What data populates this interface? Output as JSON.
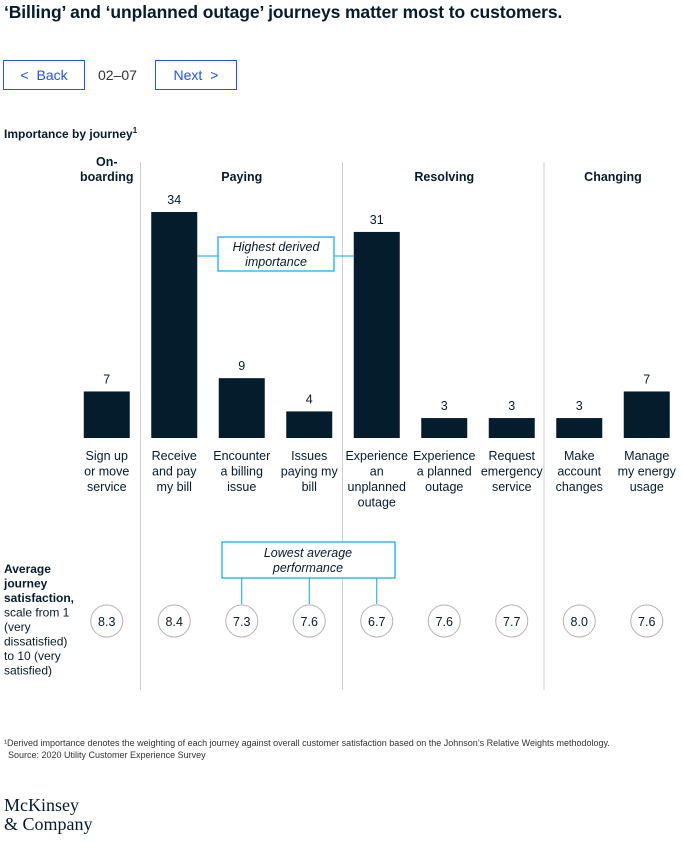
{
  "title": "‘Billing’ and ‘unplanned outage’ journeys matter most to customers.",
  "nav": {
    "back_label": "Back",
    "next_label": "Next",
    "page_indicator": "02–07",
    "back_icon": "chevron-left-icon",
    "next_icon": "chevron-right-icon"
  },
  "chart_data": {
    "type": "bar",
    "title": "Importance by journey",
    "title_footnote_marker": "1",
    "groups": [
      {
        "label": [
          "On-",
          "boarding"
        ],
        "journeys": 1
      },
      {
        "label": [
          "Paying"
        ],
        "journeys": 3
      },
      {
        "label": [
          "Resolving"
        ],
        "journeys": 3
      },
      {
        "label": [
          "Changing"
        ],
        "journeys": 2
      }
    ],
    "categories": [
      [
        "Sign up",
        "or move",
        "service"
      ],
      [
        "Receive",
        "and pay",
        "my bill"
      ],
      [
        "Encounter",
        "a billing",
        "issue"
      ],
      [
        "Issues",
        "paying my",
        "bill"
      ],
      [
        "Experience",
        "an",
        "unplanned",
        "outage"
      ],
      [
        "Experience",
        "a planned",
        "outage"
      ],
      [
        "Request",
        "emergency",
        "service"
      ],
      [
        "Make",
        "account",
        "changes"
      ],
      [
        "Manage",
        "my energy",
        "usage"
      ]
    ],
    "values": [
      7,
      34,
      9,
      4,
      31,
      3,
      3,
      3,
      7
    ],
    "satisfaction": [
      "8.3",
      "8.4",
      "7.3",
      "7.6",
      "6.7",
      "7.6",
      "7.7",
      "8.0",
      "7.6"
    ],
    "satisfaction_label": {
      "bold": [
        "Average",
        "journey",
        "satisfaction,"
      ],
      "normal": [
        "scale from 1",
        "(very",
        "dissatisfied)",
        "to 10 (very",
        "satisfied)"
      ]
    },
    "callout_importance": [
      "Highest derived",
      "importance"
    ],
    "callout_performance": [
      "Lowest average",
      "performance"
    ],
    "colors": {
      "bar": "#051c2c",
      "callout_border": "#00a9f4",
      "divider": "#d0d0d0",
      "circle": "#b3b3b3"
    }
  },
  "footnotes": {
    "note": "¹Derived importance denotes the weighting of each journey against overall customer satisfaction based on the Johnson’s Relative Weights methodology.",
    "source": "Source: 2020 Utility Customer Experience Survey"
  },
  "brand": {
    "line1": "McKinsey",
    "line2": "& Company"
  }
}
